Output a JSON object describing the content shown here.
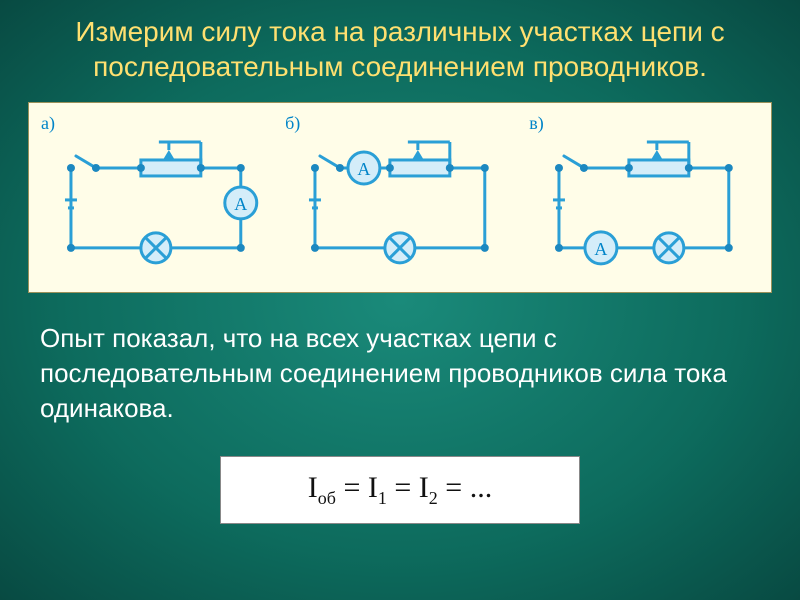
{
  "title": "Измерим силу тока на различных участках цепи с последовательным соединением проводников.",
  "body_text": "Опыт показал, что на всех участках цепи с последовательным соединением проводников сила тока одинакова.",
  "formula_html": "I<sub>об</sub> = I<sub>1</sub> = I<sub>2</sub> = ...",
  "panel": {
    "background_color": "#fffde8",
    "border_color": "#9a915a"
  },
  "colors": {
    "page_bg_center": "#1a8a7a",
    "page_bg_edge": "#084a42",
    "title_color": "#ffe070",
    "body_color": "#ffffff",
    "wire": "#2a9fd6",
    "node": "#1c88c0",
    "component_fill": "#d4edf9",
    "component_stroke": "#2a9fd6",
    "label_color": "#0084c8"
  },
  "circuits": {
    "stroke_width": 3,
    "node_radius": 4,
    "items": [
      {
        "label": "а)",
        "ammeter_position": "right"
      },
      {
        "label": "б)",
        "ammeter_position": "top-left"
      },
      {
        "label": "в)",
        "ammeter_position": "bottom-left"
      }
    ]
  }
}
